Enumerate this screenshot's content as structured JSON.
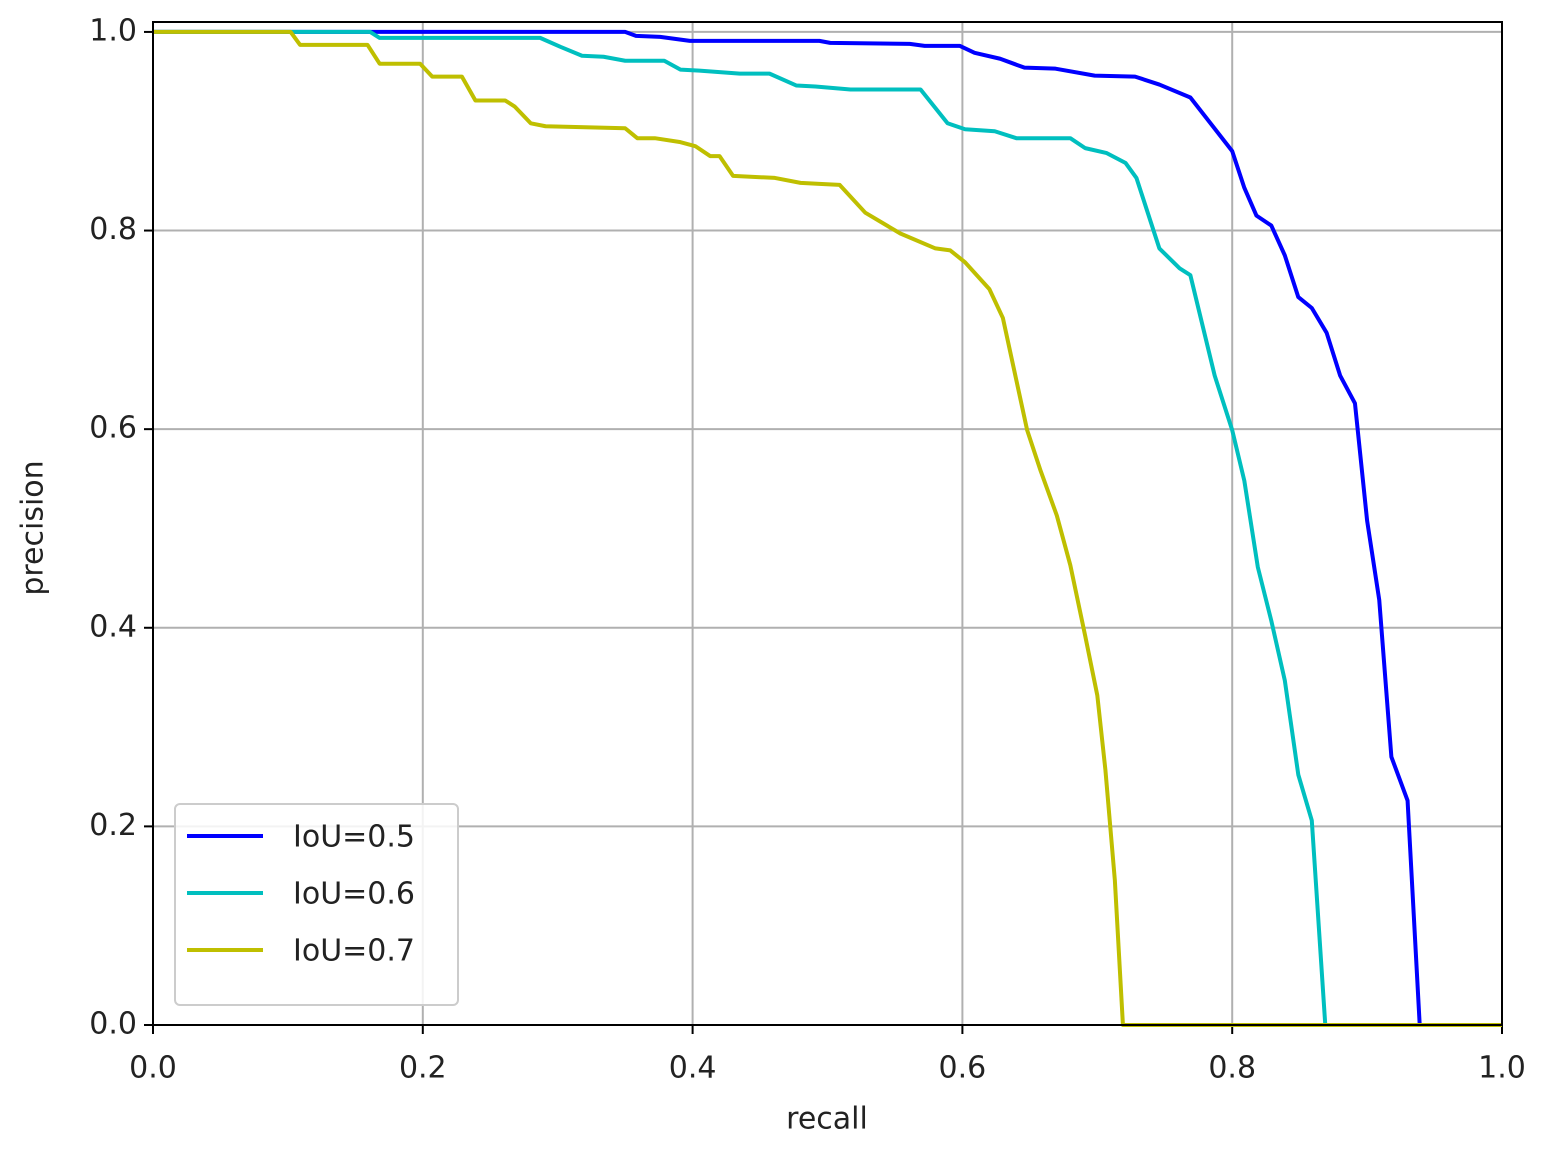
{
  "chart_data": {
    "type": "line",
    "xlabel": "recall",
    "ylabel": "precision",
    "xlim": [
      0,
      1.0
    ],
    "ylim": [
      0,
      1.01
    ],
    "xticks": [
      {
        "value": 0,
        "label": "0.0"
      },
      0.2,
      0.4,
      0.6,
      0.8,
      {
        "value": 1,
        "label": "1.0"
      }
    ],
    "yticks": [
      {
        "value": 0,
        "label": "0.0"
      },
      0.2,
      0.4,
      0.6,
      0.8,
      {
        "value": 1,
        "label": "1.0"
      }
    ],
    "grid": true,
    "legend": "lower left",
    "series": [
      {
        "name": "IoU=0.5",
        "color": "#0000ff",
        "x": [
          0,
          0.35,
          0.358,
          0.376,
          0.398,
          0.494,
          0.502,
          0.561,
          0.572,
          0.598,
          0.609,
          0.628,
          0.646,
          0.669,
          0.698,
          0.728,
          0.746,
          0.769,
          0.8,
          0.809,
          0.818,
          0.829,
          0.839,
          0.849,
          0.859,
          0.87,
          0.88,
          0.891,
          0.9,
          0.909,
          0.918,
          0.93,
          0.939,
          1.0
        ],
        "values": [
          1.0,
          1.0,
          0.996,
          0.995,
          0.991,
          0.991,
          0.989,
          0.988,
          0.986,
          0.986,
          0.979,
          0.973,
          0.964,
          0.963,
          0.956,
          0.955,
          0.947,
          0.934,
          0.88,
          0.843,
          0.815,
          0.805,
          0.775,
          0.733,
          0.722,
          0.697,
          0.654,
          0.626,
          0.508,
          0.428,
          0.27,
          0.226,
          0,
          0
        ]
      },
      {
        "name": "IoU=0.6",
        "color": "#00bfbf",
        "x": [
          0,
          0.161,
          0.168,
          0.287,
          0.302,
          0.318,
          0.334,
          0.35,
          0.379,
          0.391,
          0.405,
          0.435,
          0.457,
          0.477,
          0.491,
          0.517,
          0.569,
          0.589,
          0.602,
          0.624,
          0.64,
          0.68,
          0.691,
          0.707,
          0.721,
          0.729,
          0.746,
          0.761,
          0.769,
          0.787,
          0.8,
          0.809,
          0.819,
          0.829,
          0.839,
          0.849,
          0.859,
          0.869,
          1.0
        ],
        "values": [
          1.0,
          1.0,
          0.994,
          0.994,
          0.985,
          0.976,
          0.975,
          0.971,
          0.971,
          0.962,
          0.961,
          0.958,
          0.958,
          0.946,
          0.945,
          0.942,
          0.942,
          0.908,
          0.902,
          0.9,
          0.893,
          0.893,
          0.883,
          0.878,
          0.868,
          0.853,
          0.782,
          0.762,
          0.755,
          0.654,
          0.599,
          0.548,
          0.461,
          0.407,
          0.347,
          0.252,
          0.206,
          0,
          0
        ]
      },
      {
        "name": "IoU=0.7",
        "color": "#bfbf00",
        "x": [
          0,
          0.102,
          0.109,
          0.159,
          0.168,
          0.198,
          0.207,
          0.229,
          0.239,
          0.261,
          0.268,
          0.28,
          0.291,
          0.35,
          0.359,
          0.372,
          0.391,
          0.402,
          0.413,
          0.42,
          0.43,
          0.461,
          0.48,
          0.494,
          0.509,
          0.528,
          0.554,
          0.58,
          0.591,
          0.602,
          0.62,
          0.63,
          0.648,
          0.658,
          0.67,
          0.68,
          0.691,
          0.7,
          0.706,
          0.713,
          0.719,
          1.0
        ],
        "values": [
          1.0,
          1.0,
          0.987,
          0.987,
          0.968,
          0.968,
          0.955,
          0.955,
          0.931,
          0.931,
          0.925,
          0.908,
          0.905,
          0.903,
          0.893,
          0.893,
          0.889,
          0.885,
          0.875,
          0.875,
          0.855,
          0.853,
          0.848,
          0.847,
          0.846,
          0.818,
          0.797,
          0.782,
          0.78,
          0.768,
          0.741,
          0.712,
          0.599,
          0.558,
          0.513,
          0.463,
          0.392,
          0.332,
          0.257,
          0.146,
          0,
          0
        ]
      }
    ]
  }
}
